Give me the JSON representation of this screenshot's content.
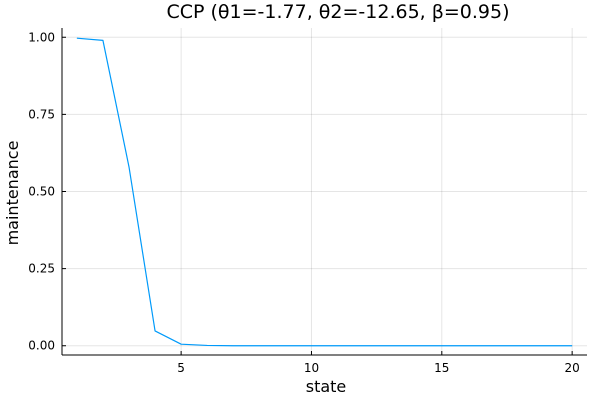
{
  "chart_data": {
    "type": "line",
    "title": "CCP (θ1=-1.77, θ2=-12.65, β=0.95)",
    "xlabel": "state",
    "ylabel": "maintenance",
    "xlim": [
      0.43,
      20.57
    ],
    "ylim": [
      -0.03,
      1.03
    ],
    "xticks": [
      5,
      10,
      15,
      20
    ],
    "xtick_labels": [
      "5",
      "10",
      "15",
      "20"
    ],
    "yticks": [
      0.0,
      0.25,
      0.5,
      0.75,
      1.0
    ],
    "ytick_labels": [
      "0.00",
      "0.25",
      "0.50",
      "0.75",
      "1.00"
    ],
    "grid": true,
    "legend": "none",
    "series": [
      {
        "color": "#009AFA",
        "x": [
          1,
          2,
          3,
          4,
          5,
          6,
          7,
          8,
          9,
          10,
          11,
          12,
          13,
          14,
          15,
          16,
          17,
          18,
          19,
          20
        ],
        "values": [
          0.997,
          0.99,
          0.58,
          0.048,
          0.005,
          0.001,
          0.0,
          0.0,
          0.0,
          0.0,
          0.0,
          0.0,
          0.0,
          0.0,
          0.0,
          0.0,
          0.0,
          0.0,
          0.0,
          0.0
        ]
      }
    ]
  }
}
